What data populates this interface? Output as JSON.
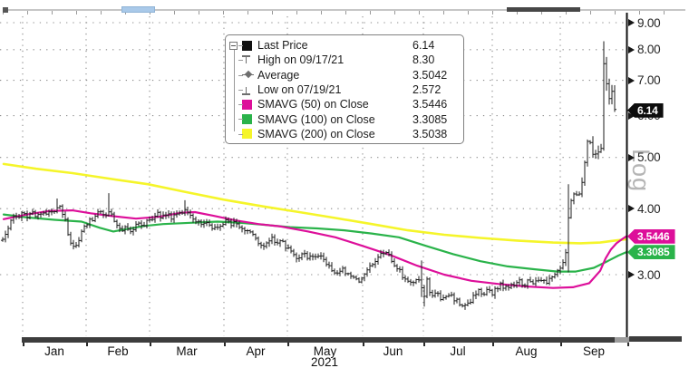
{
  "y_axis": {
    "log_label": "Log",
    "ticks": [
      {
        "label": "9.00",
        "value": 9
      },
      {
        "label": "8.00",
        "value": 8
      },
      {
        "label": "7.00",
        "value": 7
      },
      {
        "label": "6.00",
        "value": 6
      },
      {
        "label": "5.00",
        "value": 5
      },
      {
        "label": "4.00",
        "value": 4
      },
      {
        "label": "3.00",
        "value": 3
      }
    ]
  },
  "x_axis": {
    "months": [
      "Jan",
      "Feb",
      "Mar",
      "Apr",
      "May",
      "Jun",
      "Jul",
      "Aug",
      "Sep"
    ],
    "year": "2021"
  },
  "price_badges": [
    {
      "name": "last-price",
      "text": "6.14",
      "value": 6.14,
      "bg": "#0d0d0d"
    },
    {
      "name": "sma50",
      "text": "3.5446",
      "value": 3.5446,
      "bg": "#dd0f9a"
    },
    {
      "name": "sma100",
      "text": "3.3085",
      "value": 3.3085,
      "bg": "#2ab34a"
    }
  ],
  "legend": {
    "rows": [
      {
        "icon": "last-price-swatch",
        "type": "swatch",
        "color": "#111111",
        "label": "Last Price",
        "value": "6.14"
      },
      {
        "icon": "high-marker",
        "type": "high",
        "color": "#6e6e6e",
        "label": "High on 09/17/21",
        "value": "8.30"
      },
      {
        "icon": "average-marker",
        "type": "avg",
        "color": "#6e6e6e",
        "label": "Average",
        "value": "3.5042"
      },
      {
        "icon": "low-marker",
        "type": "low",
        "color": "#6e6e6e",
        "label": "Low on 07/19/21",
        "value": "2.572"
      },
      {
        "icon": "sma50-swatch",
        "type": "swatch",
        "color": "#dd0f9a",
        "label": "SMAVG (50) on Close",
        "value": "3.5446"
      },
      {
        "icon": "sma100-swatch",
        "type": "swatch",
        "color": "#2ab34a",
        "label": "SMAVG (100) on Close",
        "value": "3.3085"
      },
      {
        "icon": "sma200-swatch",
        "type": "swatch",
        "color": "#f5f52a",
        "label": "SMAVG (200) on Close",
        "value": "3.5038"
      }
    ]
  },
  "chart_data": {
    "type": "ohlc",
    "scale": "log",
    "year": "2021",
    "months": [
      "Jan",
      "Feb",
      "Mar",
      "Apr",
      "May",
      "Jun",
      "Jul",
      "Aug",
      "Sep"
    ],
    "ylim": [
      2.5,
      9.3
    ],
    "grid": "dotted",
    "last_price": 6.14,
    "high": {
      "date": "09/17/21",
      "value": 8.3
    },
    "low": {
      "date": "07/19/21",
      "value": 2.572
    },
    "average": 3.5042,
    "close_path": [
      [
        3,
        3.5
      ],
      [
        7,
        3.56
      ],
      [
        11,
        3.82
      ],
      [
        15,
        3.88
      ],
      [
        20,
        3.85
      ],
      [
        25,
        3.9
      ],
      [
        30,
        3.86
      ],
      [
        35,
        3.92
      ],
      [
        40,
        3.88
      ],
      [
        45,
        3.94
      ],
      [
        50,
        3.9
      ],
      [
        55,
        3.95
      ],
      [
        60,
        3.98
      ],
      [
        64,
        4.05
      ],
      [
        68,
        3.97
      ],
      [
        72,
        3.78
      ],
      [
        76,
        3.52
      ],
      [
        80,
        3.42
      ],
      [
        84,
        3.38
      ],
      [
        88,
        3.56
      ],
      [
        92,
        3.66
      ],
      [
        96,
        3.74
      ],
      [
        101,
        3.82
      ],
      [
        106,
        3.9
      ],
      [
        111,
        3.95
      ],
      [
        116,
        3.9
      ],
      [
        120,
        3.98
      ],
      [
        124,
        3.84
      ],
      [
        129,
        3.72
      ],
      [
        134,
        3.64
      ],
      [
        139,
        3.7
      ],
      [
        144,
        3.62
      ],
      [
        149,
        3.7
      ],
      [
        154,
        3.76
      ],
      [
        159,
        3.72
      ],
      [
        164,
        3.8
      ],
      [
        169,
        3.86
      ],
      [
        174,
        3.92
      ],
      [
        179,
        3.85
      ],
      [
        184,
        3.9
      ],
      [
        189,
        3.84
      ],
      [
        194,
        3.9
      ],
      [
        199,
        3.95
      ],
      [
        204,
        3.99
      ],
      [
        209,
        3.92
      ],
      [
        214,
        3.84
      ],
      [
        219,
        3.77
      ],
      [
        224,
        3.72
      ],
      [
        229,
        3.78
      ],
      [
        234,
        3.7
      ],
      [
        239,
        3.66
      ],
      [
        244,
        3.73
      ],
      [
        249,
        3.78
      ],
      [
        254,
        3.73
      ],
      [
        259,
        3.78
      ],
      [
        264,
        3.7
      ],
      [
        269,
        3.63
      ],
      [
        274,
        3.68
      ],
      [
        279,
        3.58
      ],
      [
        284,
        3.45
      ],
      [
        289,
        3.37
      ],
      [
        294,
        3.44
      ],
      [
        299,
        3.52
      ],
      [
        304,
        3.45
      ],
      [
        309,
        3.49
      ],
      [
        314,
        3.4
      ],
      [
        319,
        3.34
      ],
      [
        324,
        3.28
      ],
      [
        329,
        3.23
      ],
      [
        334,
        3.29
      ],
      [
        339,
        3.23
      ],
      [
        344,
        3.27
      ],
      [
        349,
        3.21
      ],
      [
        354,
        3.25
      ],
      [
        359,
        3.16
      ],
      [
        364,
        3.1
      ],
      [
        369,
        3.05
      ],
      [
        374,
        3.02
      ],
      [
        379,
        3.07
      ],
      [
        384,
        3.01
      ],
      [
        389,
        2.95
      ],
      [
        394,
        2.91
      ],
      [
        399,
        2.97
      ],
      [
        404,
        3.03
      ],
      [
        409,
        3.1
      ],
      [
        414,
        3.18
      ],
      [
        419,
        3.26
      ],
      [
        424,
        3.31
      ],
      [
        429,
        3.26
      ],
      [
        434,
        3.17
      ],
      [
        439,
        3.07
      ],
      [
        444,
        2.99
      ],
      [
        449,
        2.93
      ],
      [
        454,
        2.9
      ],
      [
        459,
        2.96
      ],
      [
        464,
        2.87
      ],
      [
        468,
        2.72
      ],
      [
        471,
        2.93
      ],
      [
        475,
        2.72
      ],
      [
        480,
        2.79
      ],
      [
        485,
        2.72
      ],
      [
        490,
        2.69
      ],
      [
        495,
        2.75
      ],
      [
        500,
        2.7
      ],
      [
        505,
        2.66
      ],
      [
        510,
        2.64
      ],
      [
        514,
        2.6
      ],
      [
        518,
        2.66
      ],
      [
        523,
        2.73
      ],
      [
        528,
        2.79
      ],
      [
        533,
        2.74
      ],
      [
        538,
        2.8
      ],
      [
        543,
        2.77
      ],
      [
        548,
        2.83
      ],
      [
        553,
        2.87
      ],
      [
        558,
        2.83
      ],
      [
        563,
        2.89
      ],
      [
        568,
        2.85
      ],
      [
        573,
        2.91
      ],
      [
        578,
        2.87
      ],
      [
        583,
        2.93
      ],
      [
        588,
        2.89
      ],
      [
        593,
        2.95
      ],
      [
        598,
        2.91
      ],
      [
        603,
        2.89
      ],
      [
        608,
        2.95
      ],
      [
        613,
        3.0
      ],
      [
        618,
        3.08
      ],
      [
        622,
        3.2
      ],
      [
        626,
        3.35
      ],
      [
        628,
        4.28
      ],
      [
        631,
        4.12
      ],
      [
        634,
        4.28
      ],
      [
        637,
        4.18
      ],
      [
        640,
        4.3
      ],
      [
        643,
        4.55
      ],
      [
        646,
        5.1
      ],
      [
        649,
        5.45
      ],
      [
        652,
        5.25
      ],
      [
        655,
        5.0
      ],
      [
        658,
        5.05
      ],
      [
        661,
        5.15
      ],
      [
        664,
        5.3
      ],
      [
        666,
        7.6
      ],
      [
        668,
        7.3
      ],
      [
        670,
        6.6
      ],
      [
        672,
        6.45
      ],
      [
        674,
        6.9
      ],
      [
        676,
        6.55
      ],
      [
        678,
        6.14
      ]
    ],
    "bar_overrides": [
      {
        "x": 64,
        "high": 4.18
      },
      {
        "x": 120,
        "high": 4.28
      },
      {
        "x": 204,
        "high": 4.15
      },
      {
        "x": 465,
        "high": 3.19,
        "low": 2.72
      },
      {
        "x": 468,
        "low": 2.61
      },
      {
        "x": 514,
        "low": 2.572
      },
      {
        "x": 628,
        "low": 3.03,
        "high": 4.45
      },
      {
        "x": 666,
        "high": 8.3,
        "low": 5.15
      }
    ],
    "sma": [
      {
        "name": "SMAVG (200) on Close",
        "period": 200,
        "value": 3.5038,
        "color": "#f5f52a",
        "width": 2.6,
        "points": [
          [
            4,
            4.86
          ],
          [
            40,
            4.76
          ],
          [
            80,
            4.67
          ],
          [
            120,
            4.56
          ],
          [
            163,
            4.45
          ],
          [
            205,
            4.3
          ],
          [
            247,
            4.16
          ],
          [
            290,
            4.04
          ],
          [
            330,
            3.94
          ],
          [
            370,
            3.84
          ],
          [
            410,
            3.74
          ],
          [
            450,
            3.64
          ],
          [
            490,
            3.57
          ],
          [
            530,
            3.52
          ],
          [
            570,
            3.48
          ],
          [
            610,
            3.45
          ],
          [
            640,
            3.44
          ],
          [
            662,
            3.45
          ],
          [
            678,
            3.48
          ],
          [
            691,
            3.5
          ]
        ]
      },
      {
        "name": "SMAVG (100) on Close",
        "period": 100,
        "value": 3.3085,
        "color": "#2ab34a",
        "width": 2.2,
        "points": [
          [
            4,
            3.9
          ],
          [
            30,
            3.85
          ],
          [
            60,
            3.81
          ],
          [
            90,
            3.78
          ],
          [
            110,
            3.68
          ],
          [
            125,
            3.62
          ],
          [
            140,
            3.66
          ],
          [
            160,
            3.71
          ],
          [
            180,
            3.74
          ],
          [
            210,
            3.76
          ],
          [
            240,
            3.78
          ],
          [
            265,
            3.76
          ],
          [
            290,
            3.73
          ],
          [
            320,
            3.69
          ],
          [
            350,
            3.67
          ],
          [
            380,
            3.64
          ],
          [
            410,
            3.59
          ],
          [
            440,
            3.53
          ],
          [
            470,
            3.4
          ],
          [
            500,
            3.28
          ],
          [
            530,
            3.18
          ],
          [
            560,
            3.11
          ],
          [
            590,
            3.07
          ],
          [
            615,
            3.04
          ],
          [
            635,
            3.04
          ],
          [
            655,
            3.09
          ],
          [
            670,
            3.18
          ],
          [
            682,
            3.26
          ],
          [
            691,
            3.31
          ]
        ]
      },
      {
        "name": "SMAVG (50) on Close",
        "period": 50,
        "value": 3.5446,
        "color": "#dd0f9a",
        "width": 2.2,
        "points": [
          [
            4,
            3.82
          ],
          [
            30,
            3.9
          ],
          [
            55,
            3.96
          ],
          [
            80,
            3.97
          ],
          [
            100,
            3.92
          ],
          [
            125,
            3.87
          ],
          [
            150,
            3.83
          ],
          [
            175,
            3.86
          ],
          [
            200,
            3.93
          ],
          [
            215,
            3.94
          ],
          [
            235,
            3.88
          ],
          [
            260,
            3.8
          ],
          [
            285,
            3.74
          ],
          [
            310,
            3.7
          ],
          [
            340,
            3.62
          ],
          [
            370,
            3.53
          ],
          [
            400,
            3.4
          ],
          [
            430,
            3.27
          ],
          [
            460,
            3.12
          ],
          [
            490,
            3.0
          ],
          [
            520,
            2.92
          ],
          [
            550,
            2.88
          ],
          [
            580,
            2.85
          ],
          [
            610,
            2.83
          ],
          [
            632,
            2.84
          ],
          [
            650,
            2.89
          ],
          [
            662,
            3.05
          ],
          [
            668,
            3.22
          ],
          [
            674,
            3.35
          ],
          [
            680,
            3.44
          ],
          [
            686,
            3.5
          ],
          [
            691,
            3.545
          ]
        ]
      }
    ]
  }
}
